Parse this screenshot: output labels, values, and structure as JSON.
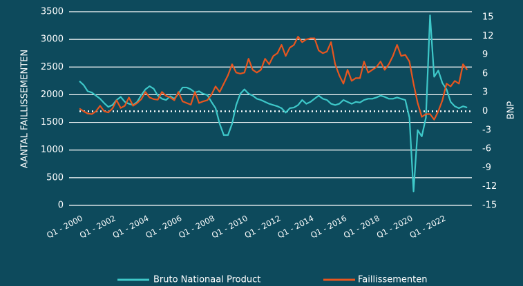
{
  "chart_data": {
    "type": "line",
    "y_label": "AANTAL FAILLISSEMENTEN",
    "y2_label": "BNP",
    "categories": [
      "Q1 - 2000",
      null,
      null,
      null,
      null,
      null,
      null,
      null,
      "Q1 - 2002",
      null,
      null,
      null,
      null,
      null,
      null,
      null,
      "Q1 - 2004",
      null,
      null,
      null,
      null,
      null,
      null,
      null,
      "Q1 - 2006",
      null,
      null,
      null,
      null,
      null,
      null,
      null,
      "Q1 - 2008",
      null,
      null,
      null,
      null,
      null,
      null,
      null,
      "Q1 - 2010",
      null,
      null,
      null,
      null,
      null,
      null,
      null,
      "Q1 - 2012",
      null,
      null,
      null,
      null,
      null,
      null,
      null,
      "Q1 - 2014",
      null,
      null,
      null,
      null,
      null,
      null,
      null,
      "Q1 - 2016",
      null,
      null,
      null,
      null,
      null,
      null,
      null,
      "Q1 - 2018",
      null,
      null,
      null,
      null,
      null,
      null,
      null,
      "Q1 - 2020",
      null,
      null,
      null,
      null,
      null,
      null,
      null,
      "Q1 - 2022",
      null,
      null,
      null,
      null,
      null,
      null
    ],
    "series": [
      {
        "name": "Bruto Nationaal Product",
        "color": "#3ec8c9",
        "axis": "y2",
        "values": [
          4.8,
          4.2,
          3.2,
          3.0,
          2.5,
          2.0,
          1.3,
          0.7,
          1.0,
          1.8,
          2.3,
          1.5,
          1.2,
          1.0,
          1.5,
          2.6,
          3.5,
          4.0,
          3.6,
          2.5,
          2.0,
          1.8,
          2.4,
          2.0,
          2.8,
          3.8,
          3.8,
          3.5,
          3.0,
          3.2,
          2.8,
          2.6,
          1.5,
          0.5,
          -2.0,
          -3.8,
          -3.8,
          -2.0,
          1.0,
          2.8,
          3.5,
          2.8,
          2.5,
          2.0,
          1.8,
          1.5,
          1.2,
          1.0,
          0.8,
          0.5,
          -0.2,
          0.5,
          0.6,
          1.0,
          1.8,
          1.2,
          1.5,
          2.0,
          2.5,
          2.0,
          1.8,
          1.2,
          1.0,
          1.2,
          1.8,
          1.5,
          1.2,
          1.5,
          1.4,
          1.8,
          2.0,
          2.0,
          2.2,
          2.5,
          2.3,
          2.0,
          2.0,
          2.2,
          2.0,
          1.8,
          -1.0,
          -12.8,
          -3.0,
          -4.0,
          -1.0,
          15.3,
          5.5,
          6.5,
          4.5,
          3.5,
          1.5,
          0.8,
          0.5,
          0.8,
          0.6
        ]
      },
      {
        "name": "Faillissementen",
        "color": "#e8561f",
        "values": [
          1750,
          1700,
          1660,
          1650,
          1700,
          1800,
          1700,
          1680,
          1750,
          1900,
          1760,
          1800,
          1950,
          1800,
          1850,
          1920,
          2050,
          1950,
          1920,
          1910,
          2050,
          1980,
          1950,
          1900,
          2050,
          1880,
          1850,
          1820,
          2050,
          1850,
          1880,
          1900,
          2000,
          2150,
          2050,
          2200,
          2350,
          2550,
          2400,
          2380,
          2400,
          2650,
          2450,
          2400,
          2450,
          2650,
          2550,
          2700,
          2750,
          2900,
          2700,
          2850,
          2900,
          3050,
          2950,
          3000,
          3020,
          3020,
          2800,
          2750,
          2780,
          2950,
          2550,
          2350,
          2200,
          2450,
          2250,
          2300,
          2300,
          2600,
          2400,
          2450,
          2500,
          2600,
          2450,
          2550,
          2700,
          2900,
          2700,
          2720,
          2600,
          2200,
          1850,
          1600,
          1650,
          1650,
          1550,
          1700,
          1900,
          2200,
          2150,
          2250,
          2200,
          2550,
          2450
        ]
      }
    ],
    "ylim": [
      0,
      3500
    ],
    "yticks": [
      0,
      500,
      1000,
      1500,
      2000,
      2500,
      3000,
      3500
    ],
    "y2lim": [
      -15,
      15
    ],
    "y2ticks": [
      -15,
      -12,
      -9,
      -6,
      -3,
      0,
      3,
      6,
      9,
      12,
      15
    ],
    "grid": true
  }
}
